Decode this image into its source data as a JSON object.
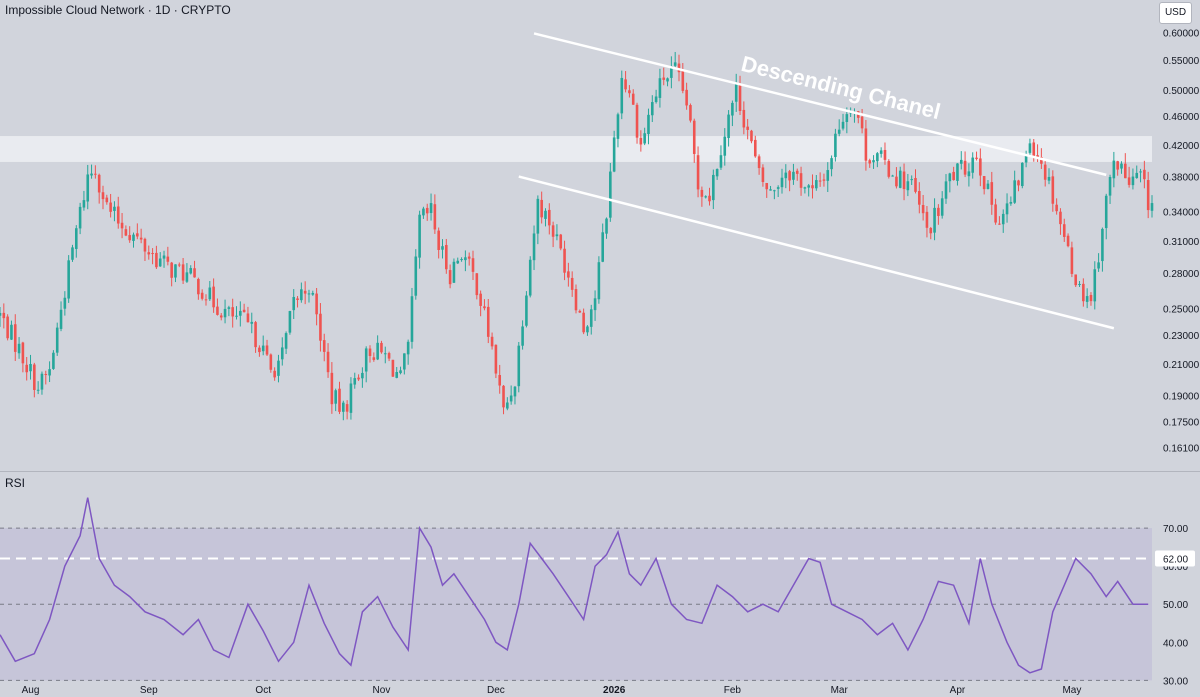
{
  "header": {
    "symbol": "Impossible Cloud Network",
    "sep1": " · ",
    "interval": "1D",
    "sep2": " · ",
    "exchange": "CRYPTO"
  },
  "currency": "USD",
  "rsi_label": "RSI",
  "annotation": "Descending Chanel",
  "colors": {
    "up": "#26a69a",
    "down": "#ef5350",
    "rsi": "#7e57c2",
    "background": "#d1d4dc",
    "zone": "#e9ebf0",
    "channel": "#ffffff"
  },
  "chart_data": [
    {
      "type": "candlestick",
      "scale": "log",
      "ylim": [
        0.15,
        0.62
      ],
      "y_ticks": [
        "0.60000",
        "0.55000",
        "0.50000",
        "0.46000",
        "0.42000",
        "0.38000",
        "0.34000",
        "0.31000",
        "0.28000",
        "0.25000",
        "0.23000",
        "0.21000",
        "0.19000",
        "0.17500",
        "0.16100"
      ],
      "x_ticks": [
        "Aug",
        "Sep",
        "Oct",
        "Nov",
        "Dec",
        "2026",
        "Feb",
        "Mar",
        "Apr",
        "May"
      ],
      "x_range": [
        "2025-07-24",
        "2026-05-22"
      ],
      "resistance_zone": [
        0.398,
        0.432
      ],
      "channel": {
        "upper": [
          [
            "2025-12-11",
            0.598
          ],
          [
            "2026-05-10",
            0.382
          ]
        ],
        "lower": [
          [
            "2025-12-07",
            0.38
          ],
          [
            "2026-05-12",
            0.235
          ]
        ]
      },
      "series": [
        {
          "values": [
            [
              "2025-07-24",
              0.245
            ],
            [
              "2025-07-29",
              0.22
            ],
            [
              "2025-08-03",
              0.195
            ],
            [
              "2025-08-06",
              0.205
            ],
            [
              "2025-08-09",
              0.25
            ],
            [
              "2025-08-13",
              0.32
            ],
            [
              "2025-08-16",
              0.38
            ],
            [
              "2025-08-18",
              0.39
            ],
            [
              "2025-08-21",
              0.345
            ],
            [
              "2025-08-24",
              0.33
            ],
            [
              "2025-08-28",
              0.315
            ],
            [
              "2025-09-01",
              0.3
            ],
            [
              "2025-09-06",
              0.285
            ],
            [
              "2025-09-10",
              0.28
            ],
            [
              "2025-09-14",
              0.27
            ],
            [
              "2025-09-18",
              0.255
            ],
            [
              "2025-09-22",
              0.245
            ],
            [
              "2025-09-26",
              0.24
            ],
            [
              "2025-09-30",
              0.225
            ],
            [
              "2025-10-03",
              0.205
            ],
            [
              "2025-10-06",
              0.215
            ],
            [
              "2025-10-09",
              0.255
            ],
            [
              "2025-10-13",
              0.27
            ],
            [
              "2025-10-16",
              0.23
            ],
            [
              "2025-10-19",
              0.19
            ],
            [
              "2025-10-22",
              0.18
            ],
            [
              "2025-10-25",
              0.2
            ],
            [
              "2025-10-29",
              0.22
            ],
            [
              "2025-11-02",
              0.215
            ],
            [
              "2025-11-06",
              0.2
            ],
            [
              "2025-11-08",
              0.22
            ],
            [
              "2025-11-11",
              0.33
            ],
            [
              "2025-11-14",
              0.34
            ],
            [
              "2025-11-16",
              0.305
            ],
            [
              "2025-11-19",
              0.28
            ],
            [
              "2025-11-22",
              0.3
            ],
            [
              "2025-11-26",
              0.27
            ],
            [
              "2025-11-30",
              0.22
            ],
            [
              "2025-12-03",
              0.18
            ],
            [
              "2025-12-06",
              0.2
            ],
            [
              "2025-12-09",
              0.27
            ],
            [
              "2025-12-12",
              0.35
            ],
            [
              "2025-12-15",
              0.33
            ],
            [
              "2025-12-18",
              0.3
            ],
            [
              "2025-12-21",
              0.27
            ],
            [
              "2025-12-24",
              0.235
            ],
            [
              "2025-12-27",
              0.26
            ],
            [
              "2025-12-30",
              0.34
            ],
            [
              "2026-01-01",
              0.43
            ],
            [
              "2026-01-03",
              0.52
            ],
            [
              "2026-01-05",
              0.5
            ],
            [
              "2026-01-08",
              0.42
            ],
            [
              "2026-01-11",
              0.48
            ],
            [
              "2026-01-14",
              0.52
            ],
            [
              "2026-01-17",
              0.53
            ],
            [
              "2026-01-20",
              0.48
            ],
            [
              "2026-01-23",
              0.37
            ],
            [
              "2026-01-26",
              0.36
            ],
            [
              "2026-01-29",
              0.42
            ],
            [
              "2026-02-02",
              0.5
            ],
            [
              "2026-02-05",
              0.44
            ],
            [
              "2026-02-08",
              0.38
            ],
            [
              "2026-02-11",
              0.36
            ],
            [
              "2026-02-15",
              0.39
            ],
            [
              "2026-02-18",
              0.38
            ],
            [
              "2026-02-22",
              0.36
            ],
            [
              "2026-02-26",
              0.39
            ],
            [
              "2026-03-01",
              0.45
            ],
            [
              "2026-03-04",
              0.48
            ],
            [
              "2026-03-06",
              0.46
            ],
            [
              "2026-03-08",
              0.41
            ],
            [
              "2026-03-12",
              0.4
            ],
            [
              "2026-03-16",
              0.38
            ],
            [
              "2026-03-20",
              0.37
            ],
            [
              "2026-03-24",
              0.32
            ],
            [
              "2026-03-27",
              0.34
            ],
            [
              "2026-03-30",
              0.38
            ],
            [
              "2026-04-03",
              0.39
            ],
            [
              "2026-04-06",
              0.41
            ],
            [
              "2026-04-09",
              0.36
            ],
            [
              "2026-04-12",
              0.33
            ],
            [
              "2026-04-15",
              0.35
            ],
            [
              "2026-04-18",
              0.39
            ],
            [
              "2026-04-20",
              0.43
            ],
            [
              "2026-04-23",
              0.4
            ],
            [
              "2026-04-26",
              0.36
            ],
            [
              "2026-04-30",
              0.3
            ],
            [
              "2026-05-03",
              0.265
            ],
            [
              "2026-05-06",
              0.26
            ],
            [
              "2026-05-08",
              0.3
            ],
            [
              "2026-05-11",
              0.38
            ],
            [
              "2026-05-13",
              0.4
            ],
            [
              "2026-05-16",
              0.37
            ],
            [
              "2026-05-19",
              0.38
            ],
            [
              "2026-05-21",
              0.35
            ]
          ]
        }
      ]
    },
    {
      "type": "line",
      "title": "RSI",
      "ylim": [
        28,
        80
      ],
      "y_ticks": [
        "70.00",
        "60.00",
        "50.00",
        "40.00",
        "30.00"
      ],
      "band": [
        30,
        70
      ],
      "levels": [
        {
          "label": "62.00",
          "value": 62
        }
      ],
      "series": [
        {
          "values": [
            [
              "2025-07-24",
              42
            ],
            [
              "2025-07-28",
              35
            ],
            [
              "2025-08-02",
              37
            ],
            [
              "2025-08-06",
              46
            ],
            [
              "2025-08-10",
              60
            ],
            [
              "2025-08-14",
              68
            ],
            [
              "2025-08-16",
              78
            ],
            [
              "2025-08-19",
              62
            ],
            [
              "2025-08-23",
              55
            ],
            [
              "2025-08-27",
              52
            ],
            [
              "2025-08-31",
              48
            ],
            [
              "2025-09-05",
              46
            ],
            [
              "2025-09-10",
              42
            ],
            [
              "2025-09-14",
              46
            ],
            [
              "2025-09-18",
              38
            ],
            [
              "2025-09-22",
              36
            ],
            [
              "2025-09-27",
              50
            ],
            [
              "2025-10-01",
              43
            ],
            [
              "2025-10-05",
              35
            ],
            [
              "2025-10-09",
              40
            ],
            [
              "2025-10-13",
              55
            ],
            [
              "2025-10-17",
              45
            ],
            [
              "2025-10-21",
              37
            ],
            [
              "2025-10-24",
              34
            ],
            [
              "2025-10-27",
              48
            ],
            [
              "2025-10-31",
              52
            ],
            [
              "2025-11-04",
              44
            ],
            [
              "2025-11-08",
              38
            ],
            [
              "2025-11-11",
              70
            ],
            [
              "2025-11-14",
              65
            ],
            [
              "2025-11-17",
              55
            ],
            [
              "2025-11-20",
              58
            ],
            [
              "2025-11-24",
              52
            ],
            [
              "2025-11-28",
              46
            ],
            [
              "2025-12-01",
              40
            ],
            [
              "2025-12-04",
              38
            ],
            [
              "2025-12-07",
              50
            ],
            [
              "2025-12-10",
              66
            ],
            [
              "2025-12-13",
              62
            ],
            [
              "2025-12-16",
              58
            ],
            [
              "2025-12-20",
              52
            ],
            [
              "2025-12-24",
              46
            ],
            [
              "2025-12-27",
              60
            ],
            [
              "2025-12-30",
              63
            ],
            [
              "2026-01-02",
              69
            ],
            [
              "2026-01-05",
              58
            ],
            [
              "2026-01-08",
              55
            ],
            [
              "2026-01-12",
              62
            ],
            [
              "2026-01-16",
              50
            ],
            [
              "2026-01-20",
              46
            ],
            [
              "2026-01-24",
              45
            ],
            [
              "2026-01-28",
              55
            ],
            [
              "2026-02-01",
              52
            ],
            [
              "2026-02-05",
              48
            ],
            [
              "2026-02-09",
              50
            ],
            [
              "2026-02-13",
              48
            ],
            [
              "2026-02-17",
              55
            ],
            [
              "2026-02-21",
              62
            ],
            [
              "2026-02-24",
              61
            ],
            [
              "2026-02-27",
              50
            ],
            [
              "2026-03-03",
              48
            ],
            [
              "2026-03-07",
              46
            ],
            [
              "2026-03-11",
              42
            ],
            [
              "2026-03-15",
              45
            ],
            [
              "2026-03-19",
              38
            ],
            [
              "2026-03-23",
              46
            ],
            [
              "2026-03-27",
              56
            ],
            [
              "2026-03-31",
              55
            ],
            [
              "2026-04-04",
              45
            ],
            [
              "2026-04-07",
              62
            ],
            [
              "2026-04-10",
              50
            ],
            [
              "2026-04-14",
              40
            ],
            [
              "2026-04-17",
              34
            ],
            [
              "2026-04-20",
              32
            ],
            [
              "2026-04-23",
              33
            ],
            [
              "2026-04-26",
              48
            ],
            [
              "2026-04-29",
              55
            ],
            [
              "2026-05-02",
              62
            ],
            [
              "2026-05-06",
              58
            ],
            [
              "2026-05-10",
              52
            ],
            [
              "2026-05-13",
              56
            ],
            [
              "2026-05-17",
              50
            ],
            [
              "2026-05-21",
              50
            ]
          ]
        }
      ]
    }
  ]
}
